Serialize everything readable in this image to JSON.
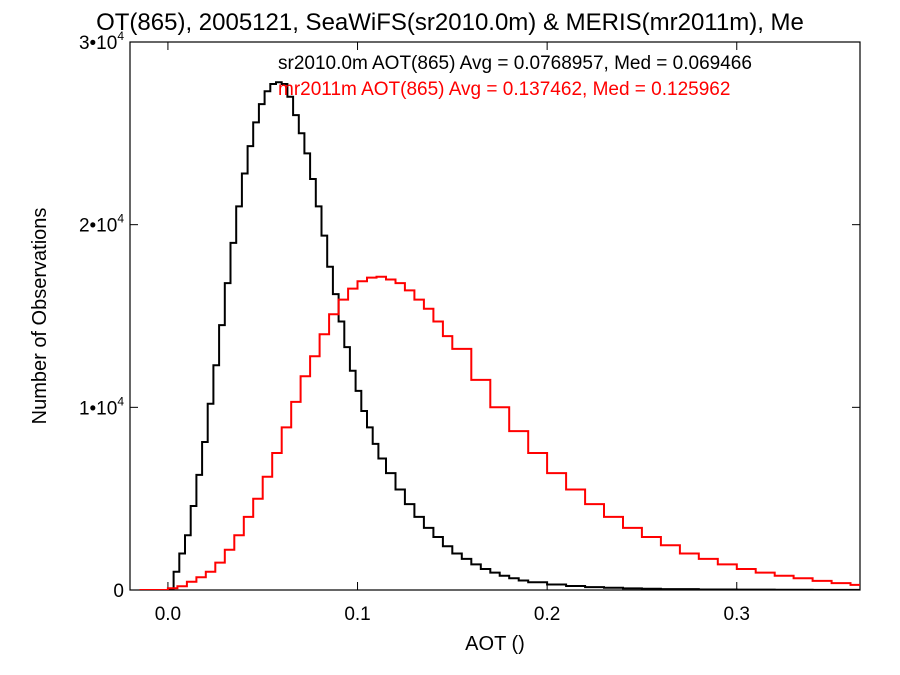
{
  "chart_data": {
    "type": "line",
    "title": "OT(865), 2005121, SeaWiFS(sr2010.0m) & MERIS(mr2011m), Me",
    "xlabel": "AOT ()",
    "ylabel": "Number of Observations",
    "xlim": [
      -0.02,
      0.365
    ],
    "ylim": [
      0,
      30000
    ],
    "x_ticks": [
      0.0,
      0.1,
      0.2,
      0.3
    ],
    "x_tick_labels": [
      "0.0",
      "0.1",
      "0.2",
      "0.3"
    ],
    "y_ticks": [
      0,
      10000,
      20000,
      30000
    ],
    "y_tick_labels": [
      {
        "base": "0",
        "exp": ""
      },
      {
        "base": "1•10",
        "exp": "4"
      },
      {
        "base": "2•10",
        "exp": "4"
      },
      {
        "base": "3•10",
        "exp": "4"
      }
    ],
    "grid": false,
    "line_style": "step",
    "series": [
      {
        "name": "sr2010.0m",
        "color": "#000000",
        "legend": "sr2010.0m AOT(865) Avg = 0.0768957, Med = 0.069466",
        "x": [
          -0.015,
          0.0,
          0.003,
          0.006,
          0.009,
          0.012,
          0.015,
          0.018,
          0.021,
          0.024,
          0.027,
          0.03,
          0.033,
          0.036,
          0.039,
          0.042,
          0.045,
          0.048,
          0.051,
          0.054,
          0.057,
          0.06,
          0.063,
          0.066,
          0.069,
          0.072,
          0.075,
          0.078,
          0.081,
          0.084,
          0.087,
          0.09,
          0.093,
          0.096,
          0.099,
          0.102,
          0.105,
          0.108,
          0.111,
          0.115,
          0.12,
          0.125,
          0.13,
          0.135,
          0.14,
          0.145,
          0.15,
          0.155,
          0.16,
          0.165,
          0.17,
          0.175,
          0.18,
          0.185,
          0.19,
          0.2,
          0.21,
          0.22,
          0.23,
          0.24,
          0.25,
          0.26,
          0.28,
          0.3,
          0.32,
          0.34,
          0.365
        ],
        "y": [
          0,
          0,
          1000,
          2000,
          3000,
          4600,
          6300,
          8100,
          10200,
          12300,
          14500,
          16800,
          19000,
          21000,
          22800,
          24300,
          25600,
          26600,
          27300,
          27700,
          27800,
          27700,
          27000,
          26000,
          25000,
          23900,
          22500,
          21000,
          19400,
          17700,
          16200,
          14700,
          13300,
          12000,
          10900,
          9800,
          8900,
          8000,
          7200,
          6400,
          5500,
          4700,
          4000,
          3400,
          2900,
          2400,
          2000,
          1700,
          1400,
          1150,
          950,
          780,
          640,
          520,
          420,
          300,
          220,
          160,
          120,
          90,
          70,
          50,
          30,
          20,
          12,
          6,
          3
        ]
      },
      {
        "name": "mr2011m",
        "color": "#ff0000",
        "legend": "mr2011m AOT(865) Avg = 0.137462, Med = 0.125962",
        "x": [
          -0.015,
          0.0,
          0.005,
          0.01,
          0.015,
          0.02,
          0.025,
          0.03,
          0.035,
          0.04,
          0.045,
          0.05,
          0.055,
          0.06,
          0.065,
          0.07,
          0.075,
          0.08,
          0.085,
          0.09,
          0.095,
          0.1,
          0.105,
          0.11,
          0.115,
          0.12,
          0.125,
          0.13,
          0.135,
          0.14,
          0.145,
          0.15,
          0.16,
          0.17,
          0.18,
          0.19,
          0.2,
          0.21,
          0.22,
          0.23,
          0.24,
          0.25,
          0.26,
          0.27,
          0.28,
          0.29,
          0.3,
          0.31,
          0.32,
          0.33,
          0.34,
          0.35,
          0.36,
          0.365
        ],
        "y": [
          0,
          100,
          200,
          450,
          700,
          1000,
          1500,
          2200,
          3000,
          4000,
          5000,
          6200,
          7500,
          8900,
          10300,
          11700,
          12800,
          14000,
          15100,
          15900,
          16500,
          16900,
          17100,
          17150,
          17000,
          16800,
          16400,
          15900,
          15400,
          14700,
          13900,
          13200,
          11500,
          10000,
          8700,
          7500,
          6400,
          5500,
          4700,
          4000,
          3400,
          2900,
          2450,
          2000,
          1700,
          1400,
          1150,
          950,
          780,
          640,
          500,
          380,
          280,
          220
        ]
      }
    ]
  }
}
